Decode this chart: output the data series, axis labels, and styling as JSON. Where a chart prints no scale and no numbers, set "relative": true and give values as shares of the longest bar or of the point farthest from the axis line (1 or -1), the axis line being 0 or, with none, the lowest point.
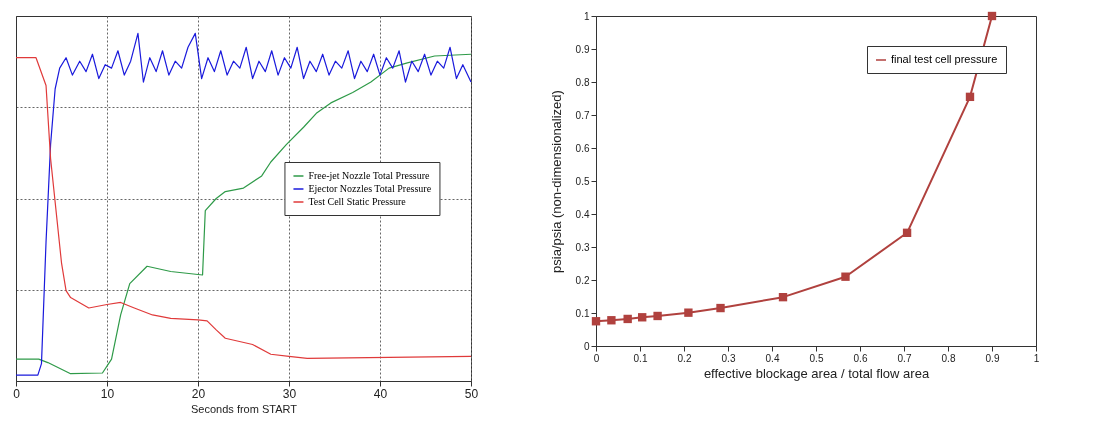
{
  "chart_data": [
    {
      "type": "line",
      "xlabel": "Seconds from START",
      "relative": true,
      "xlim": [
        0,
        50
      ],
      "xticks": [
        0,
        10,
        20,
        30,
        40,
        50
      ],
      "grid": true,
      "legend": "right",
      "line_style": "solid",
      "series": [
        {
          "name": "Free-jet Nozzle Total Pressure",
          "color": "#2e9a48",
          "x": [
            0,
            2.5,
            3.5,
            6,
            9.5,
            10.5,
            11.5,
            12.5,
            14.4,
            17,
            20.5,
            20.8,
            22,
            23,
            25,
            27,
            28,
            29.7,
            31.6,
            33,
            34.6,
            37,
            39,
            41,
            43,
            46,
            50
          ],
          "values": [
            0.063,
            0.063,
            0.053,
            0.021,
            0.023,
            0.063,
            0.19,
            0.28,
            0.33,
            0.315,
            0.305,
            0.49,
            0.525,
            0.545,
            0.555,
            0.59,
            0.63,
            0.68,
            0.73,
            0.77,
            0.8,
            0.83,
            0.86,
            0.9,
            0.915,
            0.935,
            0.94
          ]
        },
        {
          "name": "Ejector Nozzles Total Pressure",
          "color": "#1a1adc",
          "x": [
            0,
            2.4,
            2.8,
            3.3,
            3.8,
            4.3,
            4.8,
            5.5,
            6.2,
            7.0,
            7.7,
            8.4,
            9.1,
            9.8,
            10.5,
            11.2,
            11.9,
            12.6,
            13.4,
            14.0,
            14.7,
            15.4,
            16.1,
            16.8,
            17.5,
            18.2,
            18.9,
            19.7,
            20.4,
            21.1,
            21.8,
            22.5,
            23.2,
            23.9,
            24.6,
            25.3,
            26.0,
            26.7,
            27.4,
            28.1,
            28.8,
            29.5,
            30.2,
            30.9,
            31.6,
            32.3,
            33.0,
            33.7,
            34.4,
            35.1,
            35.8,
            36.5,
            37.2,
            37.9,
            38.6,
            39.3,
            40.0,
            40.7,
            41.4,
            42.1,
            42.8,
            43.5,
            44.2,
            44.9,
            45.6,
            46.3,
            47.0,
            47.7,
            48.4,
            49.1,
            50.0
          ],
          "values": [
            0.017,
            0.017,
            0.05,
            0.4,
            0.68,
            0.84,
            0.9,
            0.93,
            0.88,
            0.92,
            0.89,
            0.94,
            0.87,
            0.91,
            0.9,
            0.95,
            0.88,
            0.92,
            1.0,
            0.86,
            0.93,
            0.89,
            0.95,
            0.88,
            0.92,
            0.9,
            0.96,
            1.0,
            0.87,
            0.93,
            0.89,
            0.95,
            0.88,
            0.92,
            0.9,
            0.96,
            0.87,
            0.92,
            0.89,
            0.95,
            0.88,
            0.93,
            0.9,
            0.96,
            0.87,
            0.92,
            0.89,
            0.94,
            0.88,
            0.92,
            0.9,
            0.95,
            0.87,
            0.92,
            0.89,
            0.94,
            0.88,
            0.93,
            0.9,
            0.95,
            0.86,
            0.92,
            0.89,
            0.94,
            0.88,
            0.92,
            0.9,
            0.96,
            0.87,
            0.91,
            0.86
          ]
        },
        {
          "name": "Test Cell Static Pressure",
          "color": "#e03a3a",
          "x": [
            0,
            2.2,
            3.3,
            3.8,
            5.0,
            5.5,
            6,
            8,
            10,
            11.5,
            13,
            15,
            17,
            20,
            21,
            22,
            23,
            26,
            28,
            30,
            32,
            50
          ],
          "values": [
            0.93,
            0.93,
            0.85,
            0.64,
            0.34,
            0.26,
            0.24,
            0.21,
            0.22,
            0.226,
            0.21,
            0.19,
            0.18,
            0.176,
            0.173,
            0.147,
            0.123,
            0.105,
            0.077,
            0.071,
            0.065,
            0.071
          ]
        }
      ]
    },
    {
      "type": "line",
      "xlabel": "effective blockage area / total flow area",
      "ylabel": "psia/psia (non-dimensionalized)",
      "xlim": [
        0,
        1
      ],
      "xticks": [
        0,
        0.1,
        0.2,
        0.3,
        0.4,
        0.5,
        0.6,
        0.7,
        0.8,
        0.9,
        1
      ],
      "ylim": [
        0,
        1
      ],
      "yticks": [
        0,
        0.1,
        0.2,
        0.3,
        0.4,
        0.5,
        0.6,
        0.7,
        0.8,
        0.9,
        1
      ],
      "grid": false,
      "legend": "top right",
      "marker": "square",
      "line_style": "solid",
      "series": [
        {
          "name": "final test cell pressure",
          "color": "#b0413e",
          "x": [
            0,
            0.035,
            0.072,
            0.105,
            0.14,
            0.21,
            0.283,
            0.425,
            0.567,
            0.707,
            0.85,
            0.9
          ],
          "values": [
            0.075,
            0.078,
            0.082,
            0.087,
            0.091,
            0.101,
            0.115,
            0.148,
            0.21,
            0.343,
            0.755,
            1.0
          ]
        }
      ]
    }
  ]
}
